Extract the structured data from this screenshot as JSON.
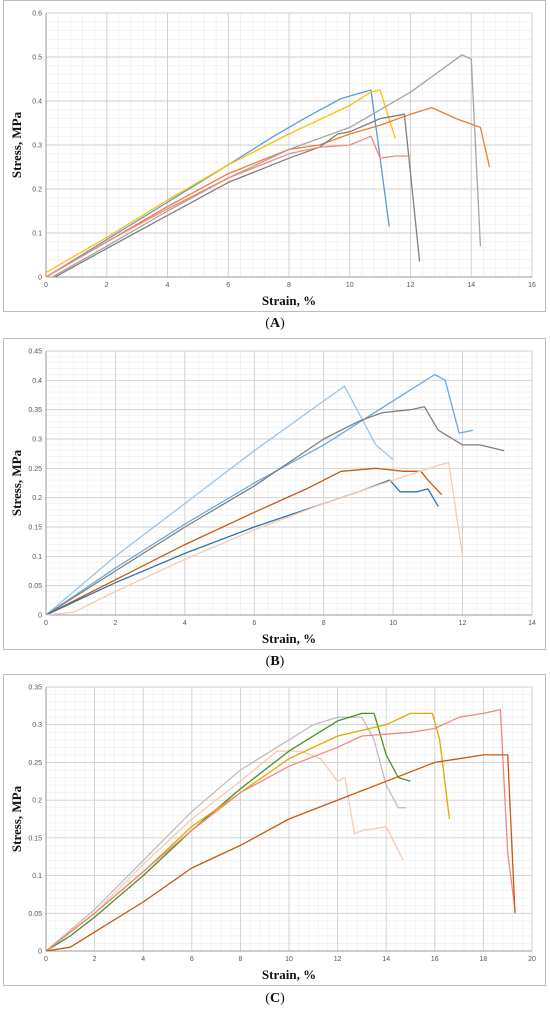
{
  "chart_data": [
    {
      "type": "line",
      "panel_label": "A",
      "xlabel": "Strain, %",
      "ylabel": "Stress, MPa",
      "xlim": [
        0,
        16
      ],
      "ylim": [
        0,
        0.6
      ],
      "xticks": [
        0,
        2,
        4,
        6,
        8,
        10,
        12,
        14,
        16
      ],
      "yticks": [
        0,
        0.1,
        0.2,
        0.3,
        0.4,
        0.5,
        0.6
      ],
      "xtick_labels": [
        "0",
        "2",
        "4",
        "6",
        "8",
        "10",
        "12",
        "14",
        "16"
      ],
      "ytick_labels": [
        "0",
        "0.1",
        "0.2",
        "0.3",
        "0.4",
        "0.5",
        "0.6"
      ],
      "grid": true,
      "series": [
        {
          "color": "#5b9bd5",
          "points": [
            [
              0,
              0
            ],
            [
              2,
              0.085
            ],
            [
              4,
              0.17
            ],
            [
              6,
              0.255
            ],
            [
              7.5,
              0.32
            ],
            [
              8.5,
              0.36
            ],
            [
              9.7,
              0.405
            ],
            [
              10.7,
              0.425
            ],
            [
              11.3,
              0.115
            ]
          ]
        },
        {
          "color": "#ffc000",
          "points": [
            [
              0,
              0.01
            ],
            [
              2,
              0.09
            ],
            [
              4,
              0.175
            ],
            [
              6,
              0.255
            ],
            [
              8,
              0.325
            ],
            [
              10,
              0.39
            ],
            [
              10.7,
              0.42
            ],
            [
              11,
              0.425
            ],
            [
              11.5,
              0.315
            ]
          ]
        },
        {
          "color": "#ed7d31",
          "points": [
            [
              0,
              0
            ],
            [
              2,
              0.08
            ],
            [
              4,
              0.16
            ],
            [
              6,
              0.235
            ],
            [
              8,
              0.29
            ],
            [
              9,
              0.3
            ],
            [
              10,
              0.325
            ],
            [
              11,
              0.345
            ],
            [
              12,
              0.37
            ],
            [
              12.7,
              0.385
            ],
            [
              13.5,
              0.36
            ],
            [
              14.3,
              0.34
            ],
            [
              14.6,
              0.25
            ]
          ]
        },
        {
          "color": "#a5a5a5",
          "points": [
            [
              0.2,
              0
            ],
            [
              2,
              0.07
            ],
            [
              4,
              0.15
            ],
            [
              6,
              0.225
            ],
            [
              8,
              0.29
            ],
            [
              10,
              0.34
            ],
            [
              11,
              0.38
            ],
            [
              12,
              0.42
            ],
            [
              13,
              0.47
            ],
            [
              13.7,
              0.505
            ],
            [
              14,
              0.495
            ],
            [
              14.3,
              0.07
            ]
          ]
        },
        {
          "color": "#7f7f7f",
          "points": [
            [
              0.3,
              0
            ],
            [
              2,
              0.065
            ],
            [
              4,
              0.14
            ],
            [
              6,
              0.215
            ],
            [
              8,
              0.27
            ],
            [
              9,
              0.295
            ],
            [
              9.6,
              0.325
            ],
            [
              10,
              0.33
            ],
            [
              11,
              0.36
            ],
            [
              11.8,
              0.37
            ],
            [
              12.3,
              0.035
            ]
          ]
        },
        {
          "color": "#f4877f",
          "points": [
            [
              0,
              0
            ],
            [
              2,
              0.08
            ],
            [
              4,
              0.155
            ],
            [
              6,
              0.225
            ],
            [
              8,
              0.28
            ],
            [
              9,
              0.295
            ],
            [
              10,
              0.3
            ],
            [
              10.7,
              0.32
            ],
            [
              11,
              0.27
            ],
            [
              11.5,
              0.275
            ],
            [
              12,
              0.275
            ]
          ]
        }
      ]
    },
    {
      "type": "line",
      "panel_label": "B",
      "xlabel": "Strain, %",
      "ylabel": "Stress, MPa",
      "xlim": [
        0,
        14
      ],
      "ylim": [
        0,
        0.45
      ],
      "xticks": [
        0,
        2,
        4,
        6,
        8,
        10,
        12,
        14
      ],
      "yticks": [
        0,
        0.05,
        0.1,
        0.15,
        0.2,
        0.25,
        0.3,
        0.35,
        0.4,
        0.45
      ],
      "xtick_labels": [
        "0",
        "2",
        "4",
        "6",
        "8",
        "10",
        "12",
        "14"
      ],
      "ytick_labels": [
        "0",
        "0.05",
        "0.1",
        "0.15",
        "0.2",
        "0.25",
        "0.3",
        "0.35",
        "0.4",
        "0.45"
      ],
      "grid": true,
      "series": [
        {
          "color": "#9dc3e6",
          "points": [
            [
              0,
              0
            ],
            [
              2,
              0.1
            ],
            [
              4,
              0.19
            ],
            [
              6,
              0.28
            ],
            [
              8,
              0.365
            ],
            [
              8.6,
              0.39
            ],
            [
              9.5,
              0.29
            ],
            [
              10,
              0.265
            ]
          ]
        },
        {
          "color": "#6fa8dc",
          "points": [
            [
              0,
              0
            ],
            [
              2,
              0.08
            ],
            [
              4,
              0.155
            ],
            [
              6,
              0.225
            ],
            [
              8,
              0.29
            ],
            [
              10,
              0.365
            ],
            [
              11.2,
              0.41
            ],
            [
              11.5,
              0.4
            ],
            [
              11.9,
              0.31
            ],
            [
              12.3,
              0.315
            ]
          ]
        },
        {
          "color": "#7f7f7f",
          "points": [
            [
              0,
              0
            ],
            [
              2,
              0.075
            ],
            [
              4,
              0.15
            ],
            [
              6,
              0.22
            ],
            [
              8,
              0.3
            ],
            [
              9,
              0.33
            ],
            [
              9.7,
              0.345
            ],
            [
              10.5,
              0.35
            ],
            [
              10.9,
              0.355
            ],
            [
              11.3,
              0.315
            ],
            [
              12,
              0.29
            ],
            [
              12.5,
              0.29
            ],
            [
              13.2,
              0.28
            ]
          ]
        },
        {
          "color": "#c55a11",
          "points": [
            [
              0,
              0
            ],
            [
              2,
              0.06
            ],
            [
              4,
              0.12
            ],
            [
              6,
              0.175
            ],
            [
              7.5,
              0.215
            ],
            [
              8.5,
              0.245
            ],
            [
              9.5,
              0.25
            ],
            [
              10.3,
              0.245
            ],
            [
              10.8,
              0.245
            ],
            [
              11,
              0.23
            ],
            [
              11.4,
              0.205
            ]
          ]
        },
        {
          "color": "#2e75b6",
          "points": [
            [
              0,
              0
            ],
            [
              2,
              0.055
            ],
            [
              4,
              0.105
            ],
            [
              6,
              0.15
            ],
            [
              7,
              0.17
            ],
            [
              8,
              0.19
            ],
            [
              9,
              0.21
            ],
            [
              9.9,
              0.23
            ],
            [
              10.2,
              0.21
            ],
            [
              10.7,
              0.21
            ],
            [
              11,
              0.215
            ],
            [
              11.3,
              0.185
            ]
          ]
        },
        {
          "color": "#f8cbad",
          "points": [
            [
              0,
              0
            ],
            [
              0.8,
              0.005
            ],
            [
              2,
              0.04
            ],
            [
              4,
              0.095
            ],
            [
              6,
              0.145
            ],
            [
              8,
              0.19
            ],
            [
              10,
              0.23
            ],
            [
              11.3,
              0.255
            ],
            [
              11.6,
              0.26
            ],
            [
              12,
              0.1
            ]
          ]
        }
      ]
    },
    {
      "type": "line",
      "panel_label": "C",
      "xlabel": "Strain, %",
      "ylabel": "Stress, MPa",
      "xlim": [
        0,
        20
      ],
      "ylim": [
        0,
        0.35
      ],
      "xticks": [
        0,
        2,
        4,
        6,
        8,
        10,
        12,
        14,
        16,
        18,
        20
      ],
      "yticks": [
        0,
        0.05,
        0.1,
        0.15,
        0.2,
        0.25,
        0.3,
        0.35
      ],
      "xtick_labels": [
        "0",
        "2",
        "4",
        "6",
        "8",
        "10",
        "12",
        "14",
        "16",
        "18",
        "20"
      ],
      "ytick_labels": [
        "0",
        "0.05",
        "0.1",
        "0.15",
        "0.2",
        "0.25",
        "0.3",
        "0.35"
      ],
      "grid": true,
      "series": [
        {
          "color": "#bfbfbf",
          "points": [
            [
              0,
              0
            ],
            [
              2,
              0.055
            ],
            [
              4,
              0.12
            ],
            [
              6,
              0.185
            ],
            [
              8,
              0.24
            ],
            [
              10,
              0.28
            ],
            [
              11,
              0.3
            ],
            [
              12,
              0.31
            ],
            [
              13,
              0.31
            ],
            [
              13.5,
              0.28
            ],
            [
              14,
              0.22
            ],
            [
              14.5,
              0.19
            ],
            [
              14.8,
              0.19
            ]
          ]
        },
        {
          "color": "#f8cbad",
          "points": [
            [
              0,
              0
            ],
            [
              2,
              0.05
            ],
            [
              4,
              0.115
            ],
            [
              6,
              0.175
            ],
            [
              8,
              0.225
            ],
            [
              9.5,
              0.265
            ],
            [
              10.5,
              0.265
            ],
            [
              11.3,
              0.255
            ],
            [
              12,
              0.225
            ],
            [
              12.3,
              0.23
            ],
            [
              12.7,
              0.155
            ],
            [
              13,
              0.16
            ],
            [
              13.5,
              0.162
            ],
            [
              14,
              0.165
            ],
            [
              14.7,
              0.12
            ]
          ]
        },
        {
          "color": "#4a8f2a",
          "points": [
            [
              0,
              0
            ],
            [
              1,
              0.02
            ],
            [
              2,
              0.045
            ],
            [
              4,
              0.1
            ],
            [
              6,
              0.16
            ],
            [
              8,
              0.215
            ],
            [
              10,
              0.265
            ],
            [
              12,
              0.305
            ],
            [
              13,
              0.315
            ],
            [
              13.5,
              0.315
            ],
            [
              14,
              0.26
            ],
            [
              14.5,
              0.23
            ],
            [
              15,
              0.225
            ]
          ]
        },
        {
          "color": "#e0a800",
          "points": [
            [
              0,
              0
            ],
            [
              2,
              0.05
            ],
            [
              4,
              0.105
            ],
            [
              6,
              0.165
            ],
            [
              8,
              0.21
            ],
            [
              10,
              0.255
            ],
            [
              12,
              0.285
            ],
            [
              14,
              0.3
            ],
            [
              15,
              0.315
            ],
            [
              15.9,
              0.315
            ],
            [
              16.2,
              0.28
            ],
            [
              16.6,
              0.175
            ]
          ]
        },
        {
          "color": "#f4877f",
          "points": [
            [
              0,
              0
            ],
            [
              2,
              0.05
            ],
            [
              4,
              0.105
            ],
            [
              6,
              0.16
            ],
            [
              8,
              0.21
            ],
            [
              10,
              0.245
            ],
            [
              12,
              0.27
            ],
            [
              13,
              0.285
            ],
            [
              15,
              0.29
            ],
            [
              16,
              0.295
            ],
            [
              17,
              0.31
            ],
            [
              18,
              0.315
            ],
            [
              18.7,
              0.32
            ],
            [
              19,
              0.13
            ],
            [
              19.3,
              0.055
            ]
          ]
        },
        {
          "color": "#c55a11",
          "points": [
            [
              0,
              0
            ],
            [
              1,
              0.005
            ],
            [
              2,
              0.025
            ],
            [
              4,
              0.065
            ],
            [
              6,
              0.11
            ],
            [
              8,
              0.14
            ],
            [
              10,
              0.175
            ],
            [
              12,
              0.2
            ],
            [
              14,
              0.225
            ],
            [
              16,
              0.25
            ],
            [
              17,
              0.255
            ],
            [
              18,
              0.26
            ],
            [
              18.5,
              0.26
            ],
            [
              19,
              0.26
            ],
            [
              19.3,
              0.05
            ]
          ]
        }
      ]
    }
  ]
}
